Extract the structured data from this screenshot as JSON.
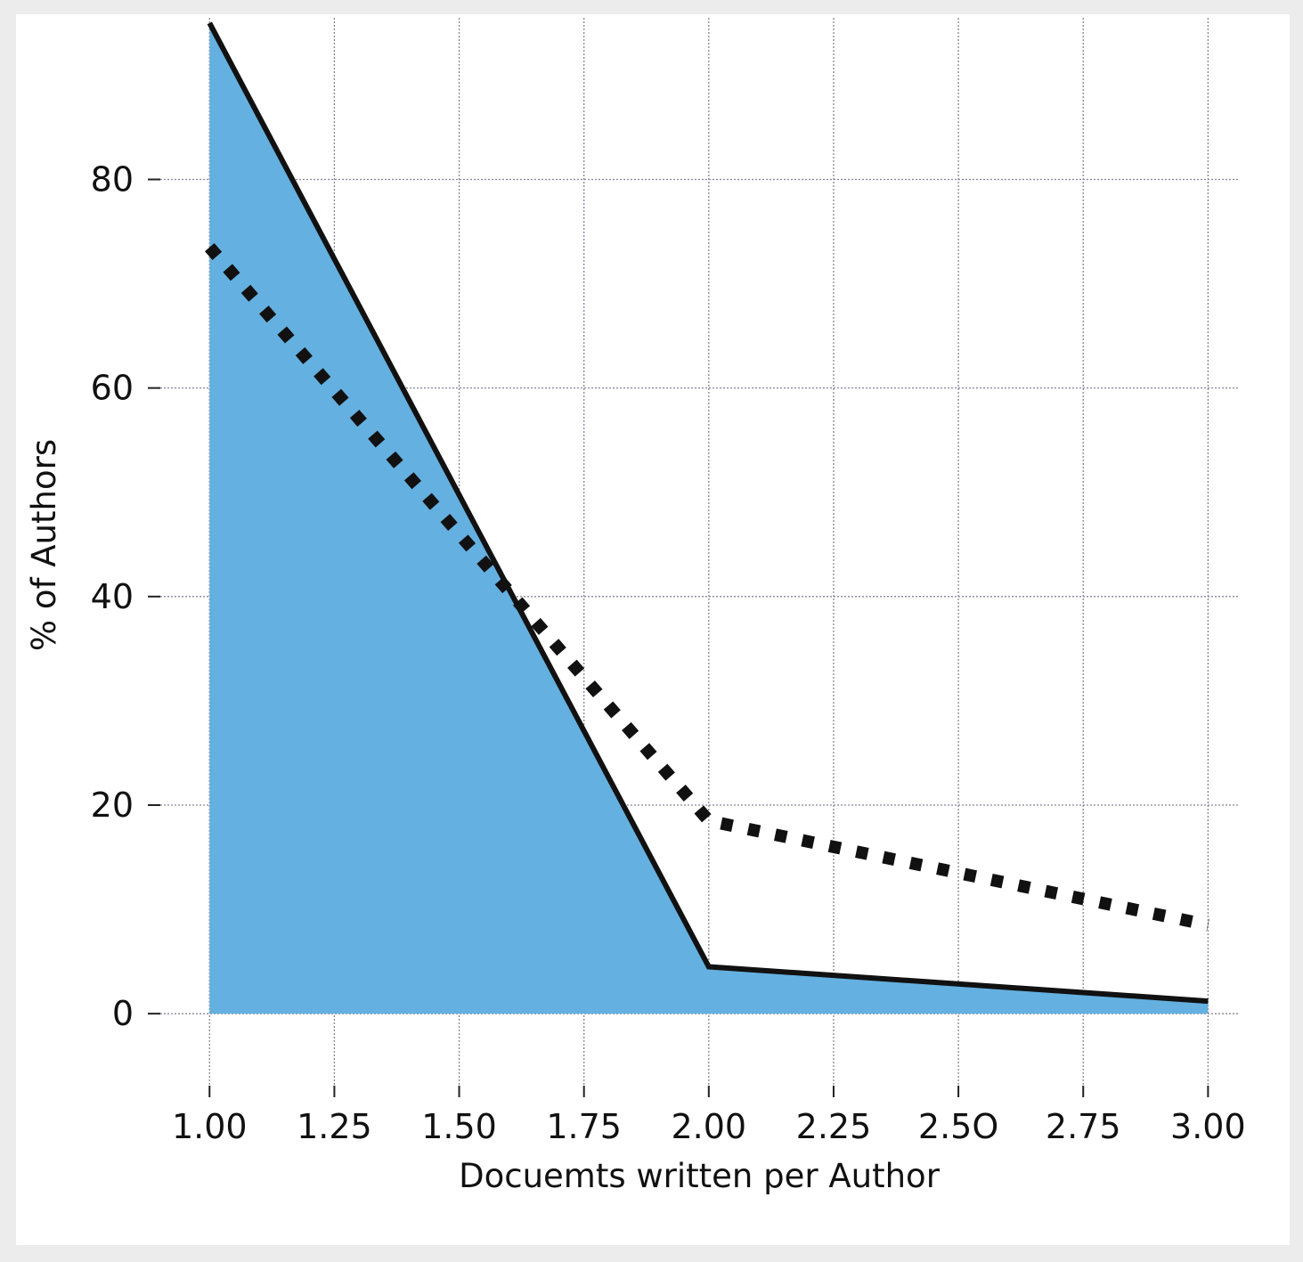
{
  "chart_data": {
    "type": "area",
    "title": "",
    "xlabel": "Docuemts written per Author",
    "ylabel": "% of Authors",
    "xlim": [
      0.88,
      3.06
    ],
    "ylim": [
      -4,
      95.5
    ],
    "x_ticks": [
      1.0,
      1.25,
      1.5,
      1.75,
      2.0,
      2.25,
      2.5,
      2.75,
      3.0
    ],
    "x_tick_labels": [
      "1.00",
      "1.25",
      "1.50",
      "1.75",
      "2.00",
      "2.25",
      "2.5O",
      "2.75",
      "3.00"
    ],
    "y_ticks": [
      0,
      20,
      40,
      60,
      80
    ],
    "y_tick_labels": [
      "0",
      "20",
      "40",
      "60",
      "80"
    ],
    "grid": true,
    "series": [
      {
        "style": "solid-line-with-fill",
        "line_color": "#111111",
        "fill_color": "#64b0e0",
        "x": [
          1.0,
          2.0,
          3.0
        ],
        "values": [
          95.0,
          4.5,
          1.2
        ]
      },
      {
        "style": "dotted-line",
        "line_color": "#111111",
        "x": [
          1.0,
          2.0,
          3.0
        ],
        "values": [
          73.5,
          18.5,
          8.5
        ]
      }
    ]
  }
}
